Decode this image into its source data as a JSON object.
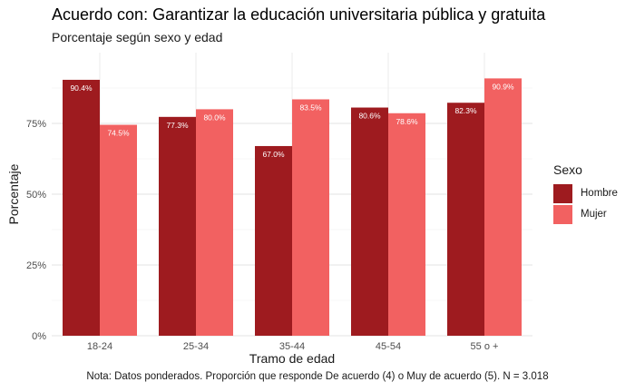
{
  "title": "Acuerdo con: Garantizar la educación universitaria pública y gratuita",
  "subtitle": "Porcentaje según sexo y edad",
  "caption": "Nota: Datos ponderados. Proporción que responde De acuerdo (4) o Muy de acuerdo (5). N = 3.018",
  "legend": {
    "title": "Sexo"
  },
  "chart_data": {
    "type": "bar",
    "xlabel": "Tramo de edad",
    "ylabel": "Porcentaje",
    "ylim": [
      0,
      100
    ],
    "yticks": [
      0,
      25,
      50,
      75
    ],
    "ytick_labels": [
      "0%",
      "25%",
      "50%",
      "75%"
    ],
    "categories": [
      "18-24",
      "25-34",
      "35-44",
      "45-54",
      "55 o +"
    ],
    "series": [
      {
        "name": "Hombre",
        "color": "#9E1B1F",
        "values": [
          90.4,
          77.3,
          67.0,
          80.6,
          82.3
        ],
        "labels": [
          "90.4%",
          "77.3%",
          "67.0%",
          "80.6%",
          "82.3%"
        ]
      },
      {
        "name": "Mujer",
        "color": "#F26161",
        "values": [
          74.5,
          80.0,
          83.5,
          78.6,
          90.9
        ],
        "labels": [
          "74.5%",
          "80.0%",
          "83.5%",
          "78.6%",
          "90.9%"
        ]
      }
    ],
    "grid": true,
    "legend_position": "right"
  }
}
